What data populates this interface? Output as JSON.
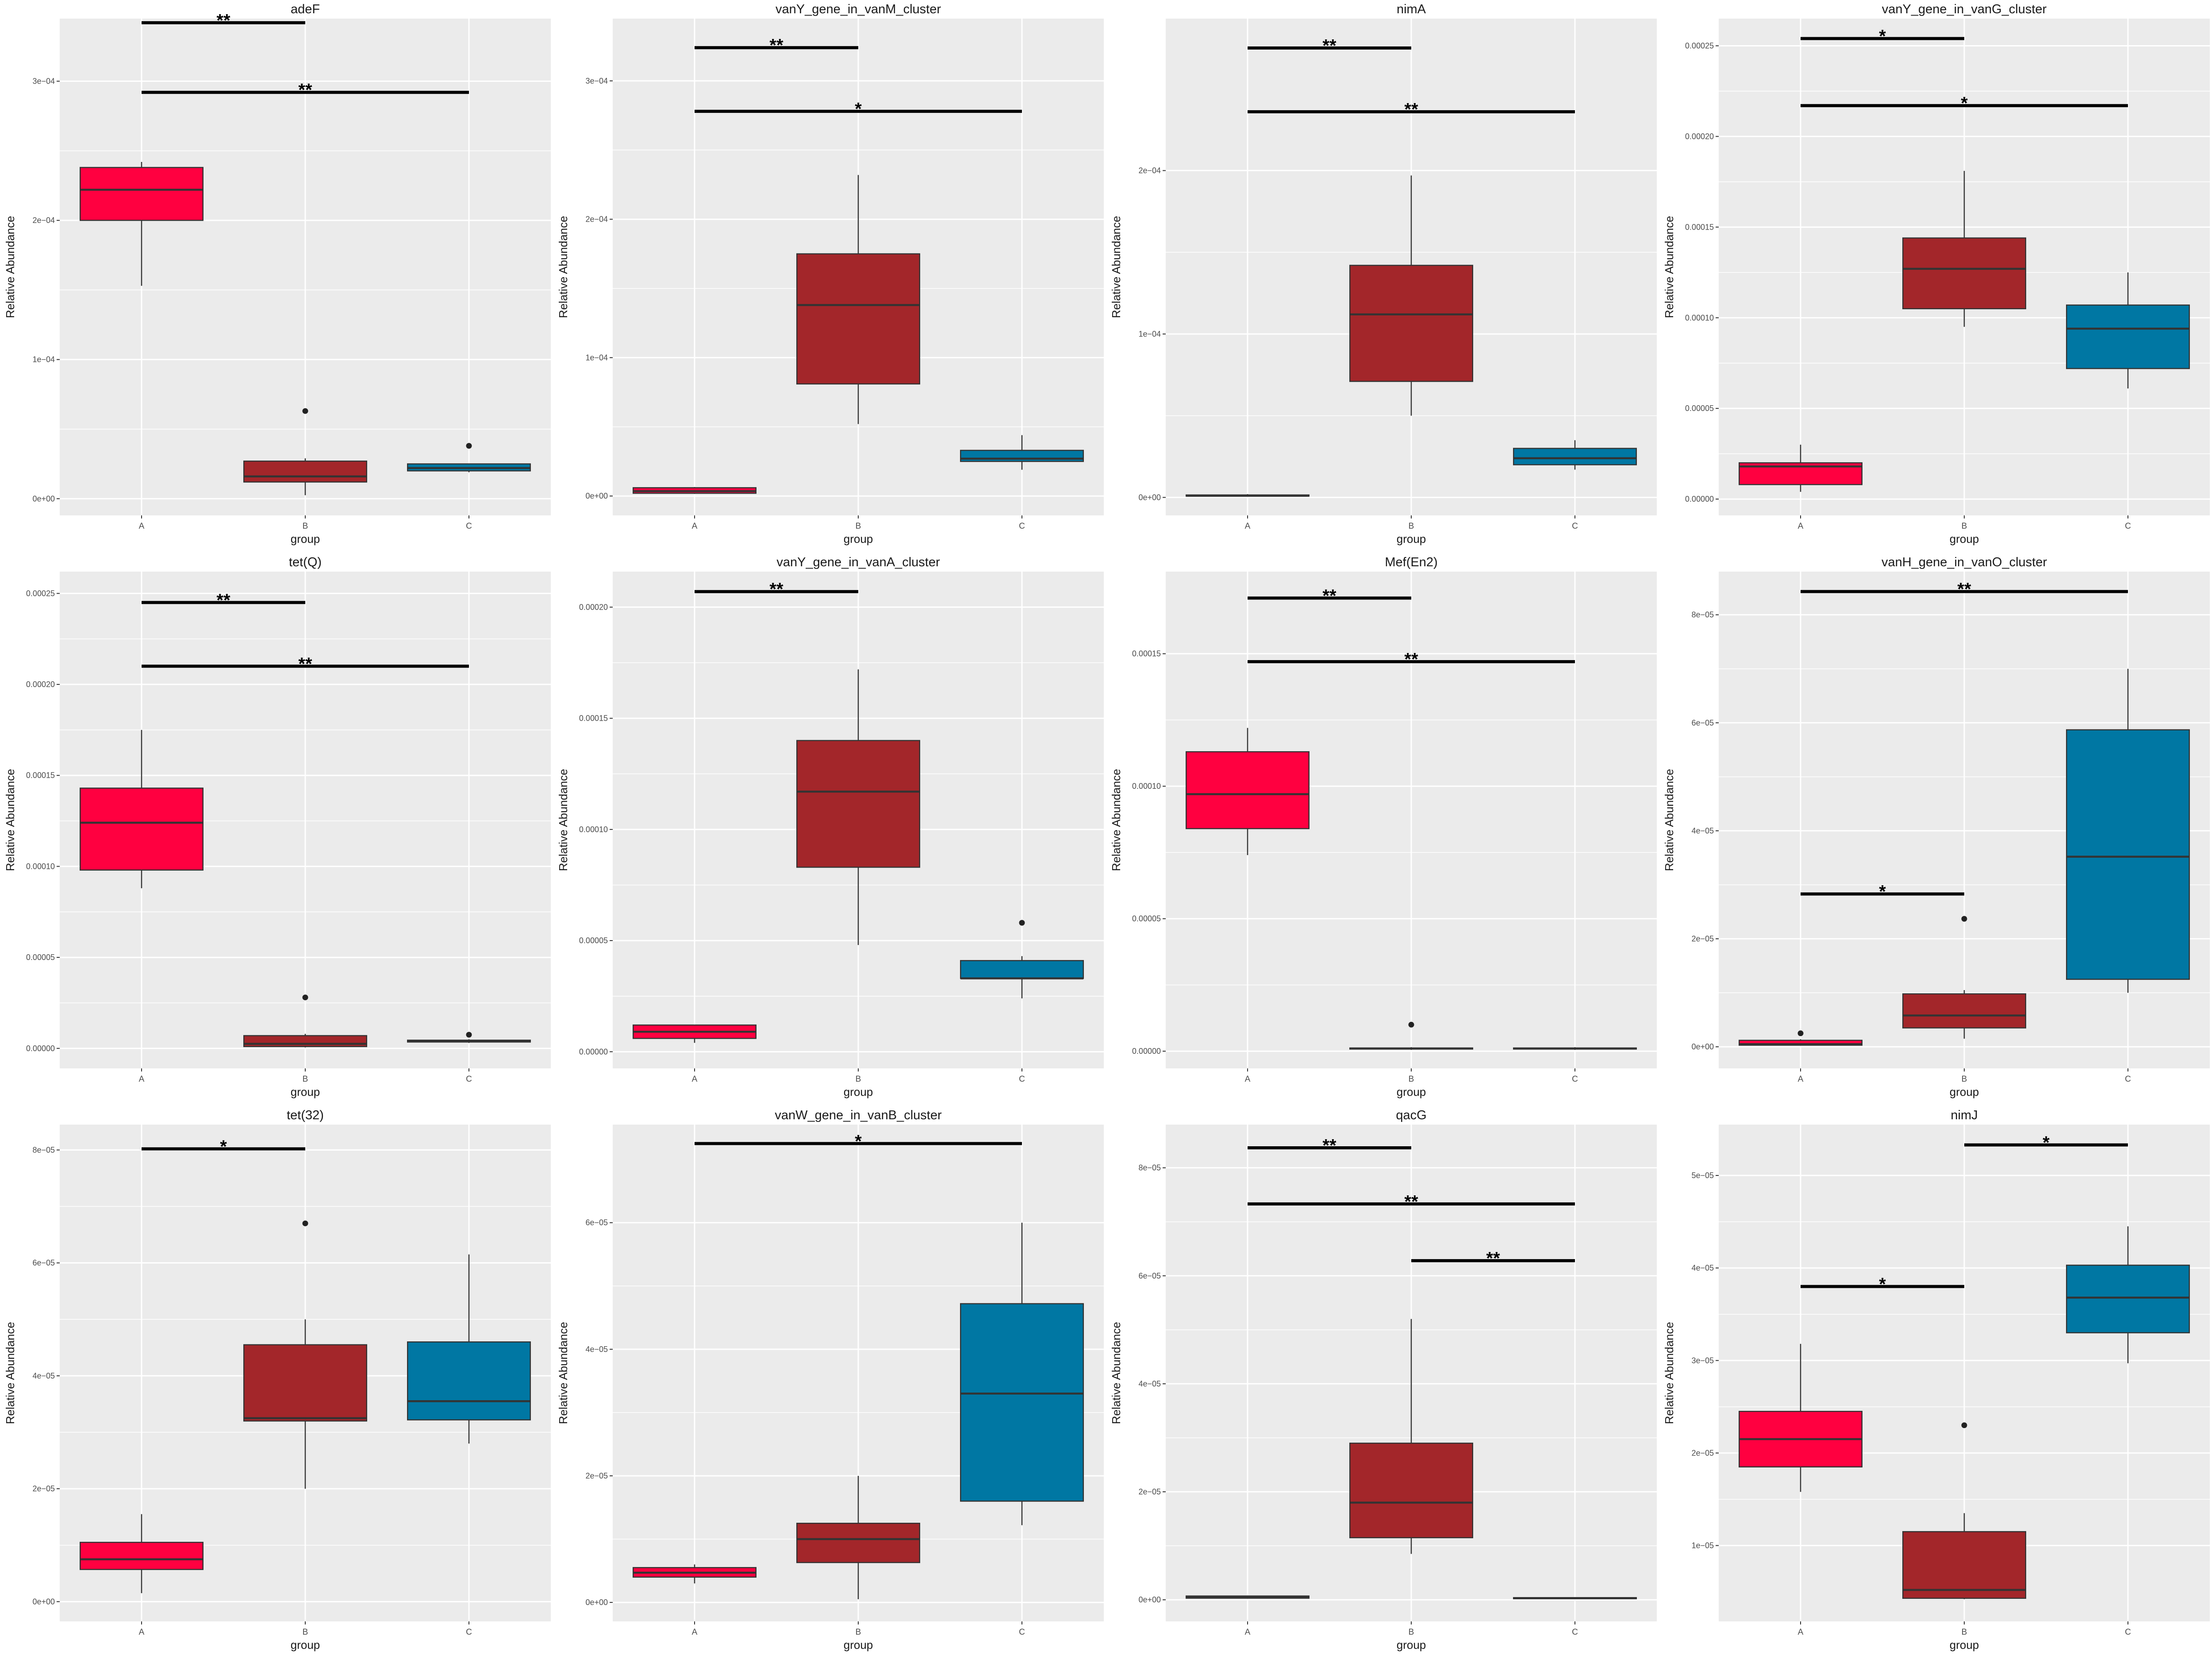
{
  "colors": {
    "A": "#ff0040",
    "B": "#a3262a",
    "C": "#0077a3",
    "panel_bg": "#ebebeb",
    "grid": "#ffffff"
  },
  "chart_data": [
    {
      "type": "box",
      "title": "adeF",
      "xlabel": "group",
      "ylabel": "Relative Abundance",
      "categories": [
        "A",
        "B",
        "C"
      ],
      "ylim": [
        -1.2e-05,
        0.000345
      ],
      "yticks": [
        0,
        0.0001,
        0.0002,
        0.0003
      ],
      "ytick_labels": [
        "0e+00",
        "1e−04",
        "2e−04",
        "3e−04"
      ],
      "boxes": [
        {
          "group": "A",
          "min": 0.000153,
          "q1": 0.0002,
          "median": 0.000222,
          "q3": 0.000238,
          "max": 0.000242,
          "outliers": []
        },
        {
          "group": "B",
          "min": 2.5e-06,
          "q1": 1.2e-05,
          "median": 1.6e-05,
          "q3": 2.7e-05,
          "max": 2.9e-05,
          "outliers": [
            6.3e-05
          ]
        },
        {
          "group": "C",
          "min": 1.9e-05,
          "q1": 2e-05,
          "median": 2.2e-05,
          "q3": 2.5e-05,
          "max": 2.5e-05,
          "outliers": [
            3.8e-05
          ]
        }
      ],
      "significance": [
        {
          "from": "A",
          "to": "B",
          "y": 0.000342,
          "label": "**"
        },
        {
          "from": "A",
          "to": "C",
          "y": 0.000292,
          "label": "**"
        }
      ]
    },
    {
      "type": "box",
      "title": "vanY_gene_in_vanM_cluster",
      "xlabel": "group",
      "ylabel": "Relative Abundance",
      "categories": [
        "A",
        "B",
        "C"
      ],
      "ylim": [
        -1.4e-05,
        0.000345
      ],
      "yticks": [
        0,
        0.0001,
        0.0002,
        0.0003
      ],
      "ytick_labels": [
        "0e+00",
        "1e−04",
        "2e−04",
        "3e−04"
      ],
      "boxes": [
        {
          "group": "A",
          "min": 1.5e-06,
          "q1": 2e-06,
          "median": 3.5e-06,
          "q3": 6e-06,
          "max": 6.5e-06,
          "outliers": []
        },
        {
          "group": "B",
          "min": 5.2e-05,
          "q1": 8.1e-05,
          "median": 0.000138,
          "q3": 0.000175,
          "max": 0.000232,
          "outliers": []
        },
        {
          "group": "C",
          "min": 1.9e-05,
          "q1": 2.5e-05,
          "median": 2.7e-05,
          "q3": 3.3e-05,
          "max": 4.4e-05,
          "outliers": []
        }
      ],
      "significance": [
        {
          "from": "A",
          "to": "B",
          "y": 0.000324,
          "label": "**"
        },
        {
          "from": "A",
          "to": "C",
          "y": 0.000278,
          "label": "*"
        }
      ]
    },
    {
      "type": "box",
      "title": "nimA",
      "xlabel": "group",
      "ylabel": "Relative Abundance",
      "categories": [
        "A",
        "B",
        "C"
      ],
      "ylim": [
        -1.1e-05,
        0.000293
      ],
      "yticks": [
        0,
        0.0001,
        0.0002
      ],
      "ytick_labels": [
        "0e+00",
        "1e−04",
        "2e−04"
      ],
      "boxes": [
        {
          "group": "A",
          "min": 5e-07,
          "q1": 8e-07,
          "median": 1e-06,
          "q3": 1.5e-06,
          "max": 2e-06,
          "outliers": []
        },
        {
          "group": "B",
          "min": 5e-05,
          "q1": 7.1e-05,
          "median": 0.000112,
          "q3": 0.000142,
          "max": 0.000197,
          "outliers": []
        },
        {
          "group": "C",
          "min": 1.7e-05,
          "q1": 2e-05,
          "median": 2.4e-05,
          "q3": 3e-05,
          "max": 3.5e-05,
          "outliers": []
        }
      ],
      "significance": [
        {
          "from": "A",
          "to": "B",
          "y": 0.000275,
          "label": "**"
        },
        {
          "from": "A",
          "to": "C",
          "y": 0.000236,
          "label": "**"
        }
      ]
    },
    {
      "type": "box",
      "title": "vanY_gene_in_vanG_cluster",
      "xlabel": "group",
      "ylabel": "Relative Abundance",
      "categories": [
        "A",
        "B",
        "C"
      ],
      "ylim": [
        -9e-06,
        0.000265
      ],
      "yticks": [
        0,
        5e-05,
        0.0001,
        0.00015,
        0.0002,
        0.00025
      ],
      "ytick_labels": [
        "0.00000",
        "0.00005",
        "0.00010",
        "0.00015",
        "0.00020",
        "0.00025"
      ],
      "boxes": [
        {
          "group": "A",
          "min": 4e-06,
          "q1": 8e-06,
          "median": 1.8e-05,
          "q3": 2e-05,
          "max": 3e-05,
          "outliers": []
        },
        {
          "group": "B",
          "min": 9.5e-05,
          "q1": 0.000105,
          "median": 0.000127,
          "q3": 0.000144,
          "max": 0.000181,
          "outliers": []
        },
        {
          "group": "C",
          "min": 6.1e-05,
          "q1": 7.2e-05,
          "median": 9.4e-05,
          "q3": 0.000107,
          "max": 0.000125,
          "outliers": []
        }
      ],
      "significance": [
        {
          "from": "A",
          "to": "B",
          "y": 0.000254,
          "label": "*"
        },
        {
          "from": "A",
          "to": "C",
          "y": 0.000217,
          "label": "*"
        }
      ]
    },
    {
      "type": "box",
      "title": "tet(Q)",
      "xlabel": "group",
      "ylabel": "Relative Abundance",
      "categories": [
        "A",
        "B",
        "C"
      ],
      "ylim": [
        -1.1e-05,
        0.000262
      ],
      "yticks": [
        0,
        5e-05,
        0.0001,
        0.00015,
        0.0002,
        0.00025
      ],
      "ytick_labels": [
        "0.00000",
        "0.00005",
        "0.00010",
        "0.00015",
        "0.00020",
        "0.00025"
      ],
      "boxes": [
        {
          "group": "A",
          "min": 8.8e-05,
          "q1": 9.8e-05,
          "median": 0.000124,
          "q3": 0.000143,
          "max": 0.000175,
          "outliers": []
        },
        {
          "group": "B",
          "min": 5e-07,
          "q1": 1e-06,
          "median": 2.5e-06,
          "q3": 7e-06,
          "max": 8e-06,
          "outliers": [
            2.8e-05
          ]
        },
        {
          "group": "C",
          "min": 3e-06,
          "q1": 3.5e-06,
          "median": 4e-06,
          "q3": 4.5e-06,
          "max": 5e-06,
          "outliers": [
            7.5e-06
          ]
        }
      ],
      "significance": [
        {
          "from": "A",
          "to": "B",
          "y": 0.000245,
          "label": "**"
        },
        {
          "from": "A",
          "to": "C",
          "y": 0.00021,
          "label": "**"
        }
      ]
    },
    {
      "type": "box",
      "title": "vanY_gene_in_vanA_cluster",
      "xlabel": "group",
      "ylabel": "Relative Abundance",
      "categories": [
        "A",
        "B",
        "C"
      ],
      "ylim": [
        -7.5e-06,
        0.000216
      ],
      "yticks": [
        0,
        5e-05,
        0.0001,
        0.00015,
        0.0002
      ],
      "ytick_labels": [
        "0.00000",
        "0.00005",
        "0.00010",
        "0.00015",
        "0.00020"
      ],
      "boxes": [
        {
          "group": "A",
          "min": 4e-06,
          "q1": 6e-06,
          "median": 9e-06,
          "q3": 1.2e-05,
          "max": 1.2e-05,
          "outliers": []
        },
        {
          "group": "B",
          "min": 4.8e-05,
          "q1": 8.3e-05,
          "median": 0.000117,
          "q3": 0.00014,
          "max": 0.000172,
          "outliers": []
        },
        {
          "group": "C",
          "min": 2.4e-05,
          "q1": 3.3e-05,
          "median": 3.3e-05,
          "q3": 4.1e-05,
          "max": 4.3e-05,
          "outliers": [
            5.8e-05
          ]
        }
      ],
      "significance": [
        {
          "from": "A",
          "to": "B",
          "y": 0.000207,
          "label": "**"
        }
      ]
    },
    {
      "type": "box",
      "title": "Mef(En2)",
      "xlabel": "group",
      "ylabel": "Relative Abundance",
      "categories": [
        "A",
        "B",
        "C"
      ],
      "ylim": [
        -6.5e-06,
        0.000181
      ],
      "yticks": [
        0,
        5e-05,
        0.0001,
        0.00015
      ],
      "ytick_labels": [
        "0.00000",
        "0.00005",
        "0.00010",
        "0.00015"
      ],
      "boxes": [
        {
          "group": "A",
          "min": 7.4e-05,
          "q1": 8.4e-05,
          "median": 9.7e-05,
          "q3": 0.000113,
          "max": 0.000122,
          "outliers": []
        },
        {
          "group": "B",
          "min": 5e-07,
          "q1": 8e-07,
          "median": 1e-06,
          "q3": 1.2e-06,
          "max": 1.5e-06,
          "outliers": [
            1e-05
          ]
        },
        {
          "group": "C",
          "min": 5e-07,
          "q1": 8e-07,
          "median": 1e-06,
          "q3": 1.2e-06,
          "max": 1.5e-06,
          "outliers": []
        }
      ],
      "significance": [
        {
          "from": "A",
          "to": "B",
          "y": 0.000171,
          "label": "**"
        },
        {
          "from": "A",
          "to": "C",
          "y": 0.000147,
          "label": "**"
        }
      ]
    },
    {
      "type": "box",
      "title": "vanH_gene_in_vanO_cluster",
      "xlabel": "group",
      "ylabel": "Relative Abundance",
      "categories": [
        "A",
        "B",
        "C"
      ],
      "ylim": [
        -4e-06,
        8.8e-05
      ],
      "yticks": [
        0,
        2e-05,
        4e-05,
        6e-05,
        8e-05
      ],
      "ytick_labels": [
        "0e+00",
        "2e−05",
        "4e−05",
        "6e−05",
        "8e−05"
      ],
      "boxes": [
        {
          "group": "A",
          "min": 2e-07,
          "q1": 3e-07,
          "median": 5e-07,
          "q3": 1.2e-06,
          "max": 1.4e-06,
          "outliers": [
            2.5e-06
          ]
        },
        {
          "group": "B",
          "min": 1.5e-06,
          "q1": 3.5e-06,
          "median": 5.8e-06,
          "q3": 9.8e-06,
          "max": 1.05e-05,
          "outliers": [
            2.37e-05
          ]
        },
        {
          "group": "C",
          "min": 1e-05,
          "q1": 1.25e-05,
          "median": 3.52e-05,
          "q3": 5.87e-05,
          "max": 7e-05,
          "outliers": []
        }
      ],
      "significance": [
        {
          "from": "A",
          "to": "C",
          "y": 8.43e-05,
          "label": "**"
        },
        {
          "from": "A",
          "to": "B",
          "y": 2.83e-05,
          "label": "*"
        }
      ]
    },
    {
      "type": "box",
      "title": "tet(32)",
      "xlabel": "group",
      "ylabel": "Relative Abundance",
      "categories": [
        "A",
        "B",
        "C"
      ],
      "ylim": [
        -3.5e-06,
        8.45e-05
      ],
      "yticks": [
        0,
        2e-05,
        4e-05,
        6e-05,
        8e-05
      ],
      "ytick_labels": [
        "0e+00",
        "2e−05",
        "4e−05",
        "6e−05",
        "8e−05"
      ],
      "boxes": [
        {
          "group": "A",
          "min": 1.5e-06,
          "q1": 5.7e-06,
          "median": 7.5e-06,
          "q3": 1.05e-05,
          "max": 1.55e-05,
          "outliers": []
        },
        {
          "group": "B",
          "min": 2e-05,
          "q1": 3.2e-05,
          "median": 3.25e-05,
          "q3": 4.55e-05,
          "max": 5e-05,
          "outliers": [
            6.7e-05
          ]
        },
        {
          "group": "C",
          "min": 2.8e-05,
          "q1": 3.22e-05,
          "median": 3.55e-05,
          "q3": 4.6e-05,
          "max": 6.15e-05,
          "outliers": []
        }
      ],
      "significance": [
        {
          "from": "A",
          "to": "B",
          "y": 8.02e-05,
          "label": "*"
        }
      ]
    },
    {
      "type": "box",
      "title": "vanW_gene_in_vanB_cluster",
      "xlabel": "group",
      "ylabel": "Relative Abundance",
      "categories": [
        "A",
        "B",
        "C"
      ],
      "ylim": [
        -3e-06,
        7.55e-05
      ],
      "yticks": [
        0,
        2e-05,
        4e-05,
        6e-05
      ],
      "ytick_labels": [
        "0e+00",
        "2e−05",
        "4e−05",
        "6e−05"
      ],
      "boxes": [
        {
          "group": "A",
          "min": 3e-06,
          "q1": 4e-06,
          "median": 4.7e-06,
          "q3": 5.5e-06,
          "max": 6e-06,
          "outliers": []
        },
        {
          "group": "B",
          "min": 5e-07,
          "q1": 6.3e-06,
          "median": 1e-05,
          "q3": 1.25e-05,
          "max": 2e-05,
          "outliers": []
        },
        {
          "group": "C",
          "min": 1.22e-05,
          "q1": 1.6e-05,
          "median": 3.3e-05,
          "q3": 4.72e-05,
          "max": 6e-05,
          "outliers": []
        }
      ],
      "significance": [
        {
          "from": "A",
          "to": "C",
          "y": 7.25e-05,
          "label": "*"
        }
      ]
    },
    {
      "type": "box",
      "title": "qacG",
      "xlabel": "group",
      "ylabel": "Relative Abundance",
      "categories": [
        "A",
        "B",
        "C"
      ],
      "ylim": [
        -4e-06,
        8.8e-05
      ],
      "yticks": [
        0,
        2e-05,
        4e-05,
        6e-05,
        8e-05
      ],
      "ytick_labels": [
        "0e+00",
        "2e−05",
        "4e−05",
        "6e−05",
        "8e−05"
      ],
      "boxes": [
        {
          "group": "A",
          "min": 2e-07,
          "q1": 3e-07,
          "median": 5e-07,
          "q3": 7e-07,
          "max": 8e-07,
          "outliers": []
        },
        {
          "group": "B",
          "min": 8.5e-06,
          "q1": 1.15e-05,
          "median": 1.8e-05,
          "q3": 2.9e-05,
          "max": 5.2e-05,
          "outliers": []
        },
        {
          "group": "C",
          "min": 1e-07,
          "q1": 2e-07,
          "median": 3e-07,
          "q3": 4e-07,
          "max": 5e-07,
          "outliers": []
        }
      ],
      "significance": [
        {
          "from": "A",
          "to": "B",
          "y": 8.37e-05,
          "label": "**"
        },
        {
          "from": "A",
          "to": "C",
          "y": 7.33e-05,
          "label": "**"
        },
        {
          "from": "B",
          "to": "C",
          "y": 6.28e-05,
          "label": "**"
        }
      ]
    },
    {
      "type": "box",
      "title": "nimJ",
      "xlabel": "group",
      "ylabel": "Relative Abundance",
      "categories": [
        "A",
        "B",
        "C"
      ],
      "ylim": [
        1.8e-06,
        5.55e-05
      ],
      "yticks": [
        1e-05,
        2e-05,
        3e-05,
        4e-05,
        5e-05
      ],
      "ytick_labels": [
        "1e−05",
        "2e−05",
        "3e−05",
        "4e−05",
        "5e−05"
      ],
      "boxes": [
        {
          "group": "A",
          "min": 1.58e-05,
          "q1": 1.85e-05,
          "median": 2.15e-05,
          "q3": 2.45e-05,
          "max": 3.18e-05,
          "outliers": []
        },
        {
          "group": "B",
          "min": 4.2e-06,
          "q1": 4.3e-06,
          "median": 5.2e-06,
          "q3": 1.15e-05,
          "max": 1.35e-05,
          "outliers": [
            2.3e-05
          ]
        },
        {
          "group": "C",
          "min": 2.97e-05,
          "q1": 3.3e-05,
          "median": 3.68e-05,
          "q3": 4.03e-05,
          "max": 4.45e-05,
          "outliers": []
        }
      ],
      "significance": [
        {
          "from": "B",
          "to": "C",
          "y": 5.33e-05,
          "label": "*"
        },
        {
          "from": "A",
          "to": "B",
          "y": 3.8e-05,
          "label": "*"
        }
      ]
    }
  ]
}
